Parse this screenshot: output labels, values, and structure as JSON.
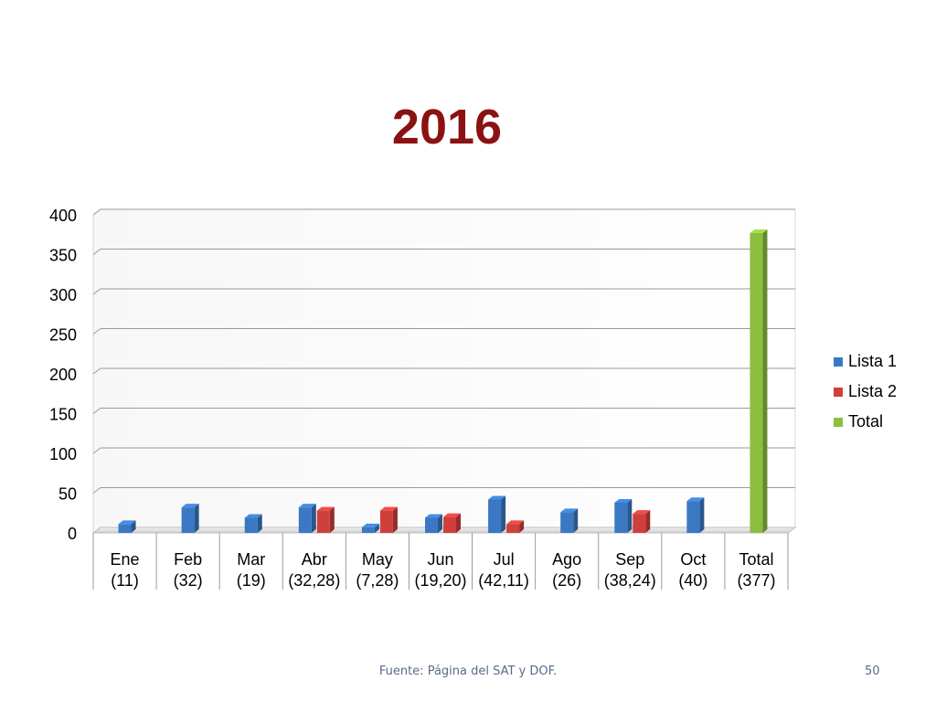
{
  "chart_data": {
    "type": "bar",
    "title": "2016",
    "categories": [
      "Ene",
      "Feb",
      "Mar",
      "Abr",
      "May",
      "Jun",
      "Jul",
      "Ago",
      "Sep",
      "Oct",
      "Total"
    ],
    "category_sublabels": [
      "(11)",
      "(32)",
      "(19)",
      "(32,28)",
      "(7,28)",
      "(19,20)",
      "(42,11)",
      "(26)",
      "(38,24)",
      "(40)",
      "(377)"
    ],
    "series": [
      {
        "name": "Lista 1",
        "color": "#3a78c3",
        "values": [
          11,
          32,
          19,
          32,
          7,
          19,
          42,
          26,
          38,
          40,
          null
        ]
      },
      {
        "name": "Lista 2",
        "color": "#cf3f3c",
        "values": [
          null,
          null,
          null,
          28,
          28,
          20,
          11,
          null,
          24,
          null,
          null
        ]
      },
      {
        "name": "Total",
        "color": "#8cbe3f",
        "values": [
          null,
          null,
          null,
          null,
          null,
          null,
          null,
          null,
          null,
          null,
          377
        ]
      }
    ],
    "yticks": [
      0,
      50,
      100,
      150,
      200,
      250,
      300,
      350,
      400
    ],
    "ylim": [
      0,
      400
    ],
    "grid": true,
    "legend": "right",
    "xlabel": "",
    "ylabel": ""
  },
  "footer": {
    "source": "Fuente: Página del SAT y DOF.",
    "page_number": "50"
  }
}
